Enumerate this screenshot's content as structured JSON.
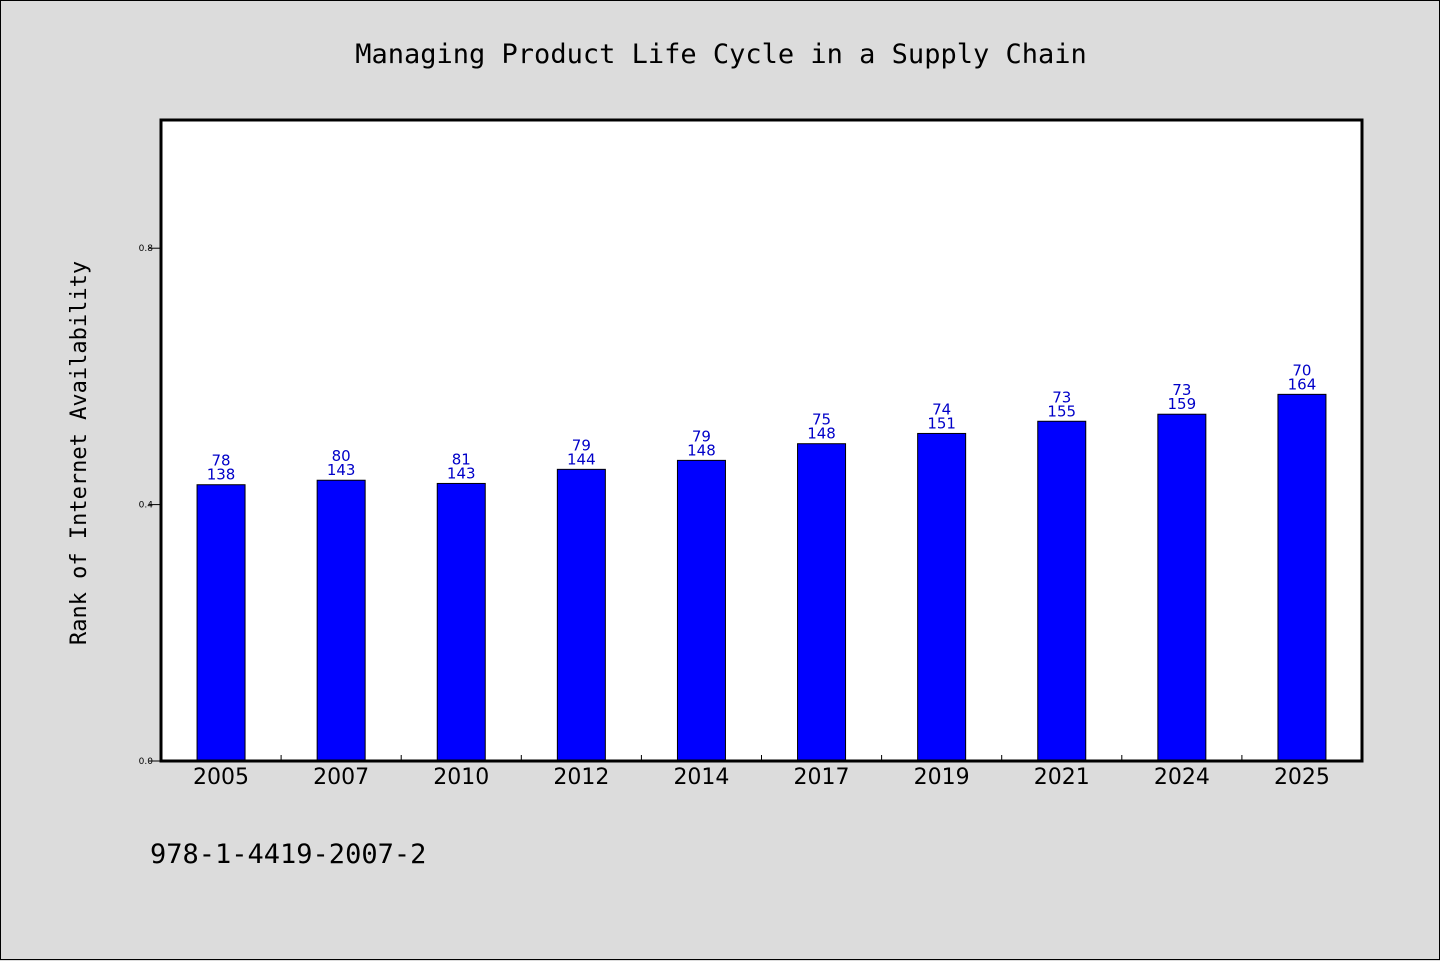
{
  "colors": {
    "background": "#dcdcdc",
    "plot_background": "#ffffff",
    "bar_fill": "#0000ff",
    "label_color": "#0000c8"
  },
  "footer_code": "978-1-4419-2007-2",
  "chart_data": {
    "type": "bar",
    "title": "Managing Product Life Cycle in a Supply Chain",
    "xlabel": "",
    "ylabel": "Rank of Internet Availability",
    "categories": [
      "2005",
      "2007",
      "2010",
      "2012",
      "2014",
      "2017",
      "2019",
      "2021",
      "2024",
      "2025"
    ],
    "values": [
      0.431,
      0.438,
      0.433,
      0.455,
      0.469,
      0.495,
      0.511,
      0.53,
      0.541,
      0.572
    ],
    "label_top": [
      "78",
      "80",
      "81",
      "79",
      "79",
      "75",
      "74",
      "73",
      "73",
      "70"
    ],
    "label_bottom": [
      "138",
      "143",
      "143",
      "144",
      "148",
      "148",
      "151",
      "155",
      "159",
      "164"
    ],
    "yticks": [
      0.0,
      0.4,
      0.8
    ],
    "ytick_labels": [
      "0.0",
      "0.4",
      "0.8"
    ],
    "ylim": [
      0,
      1.0
    ],
    "grid": false,
    "legend": "none"
  }
}
